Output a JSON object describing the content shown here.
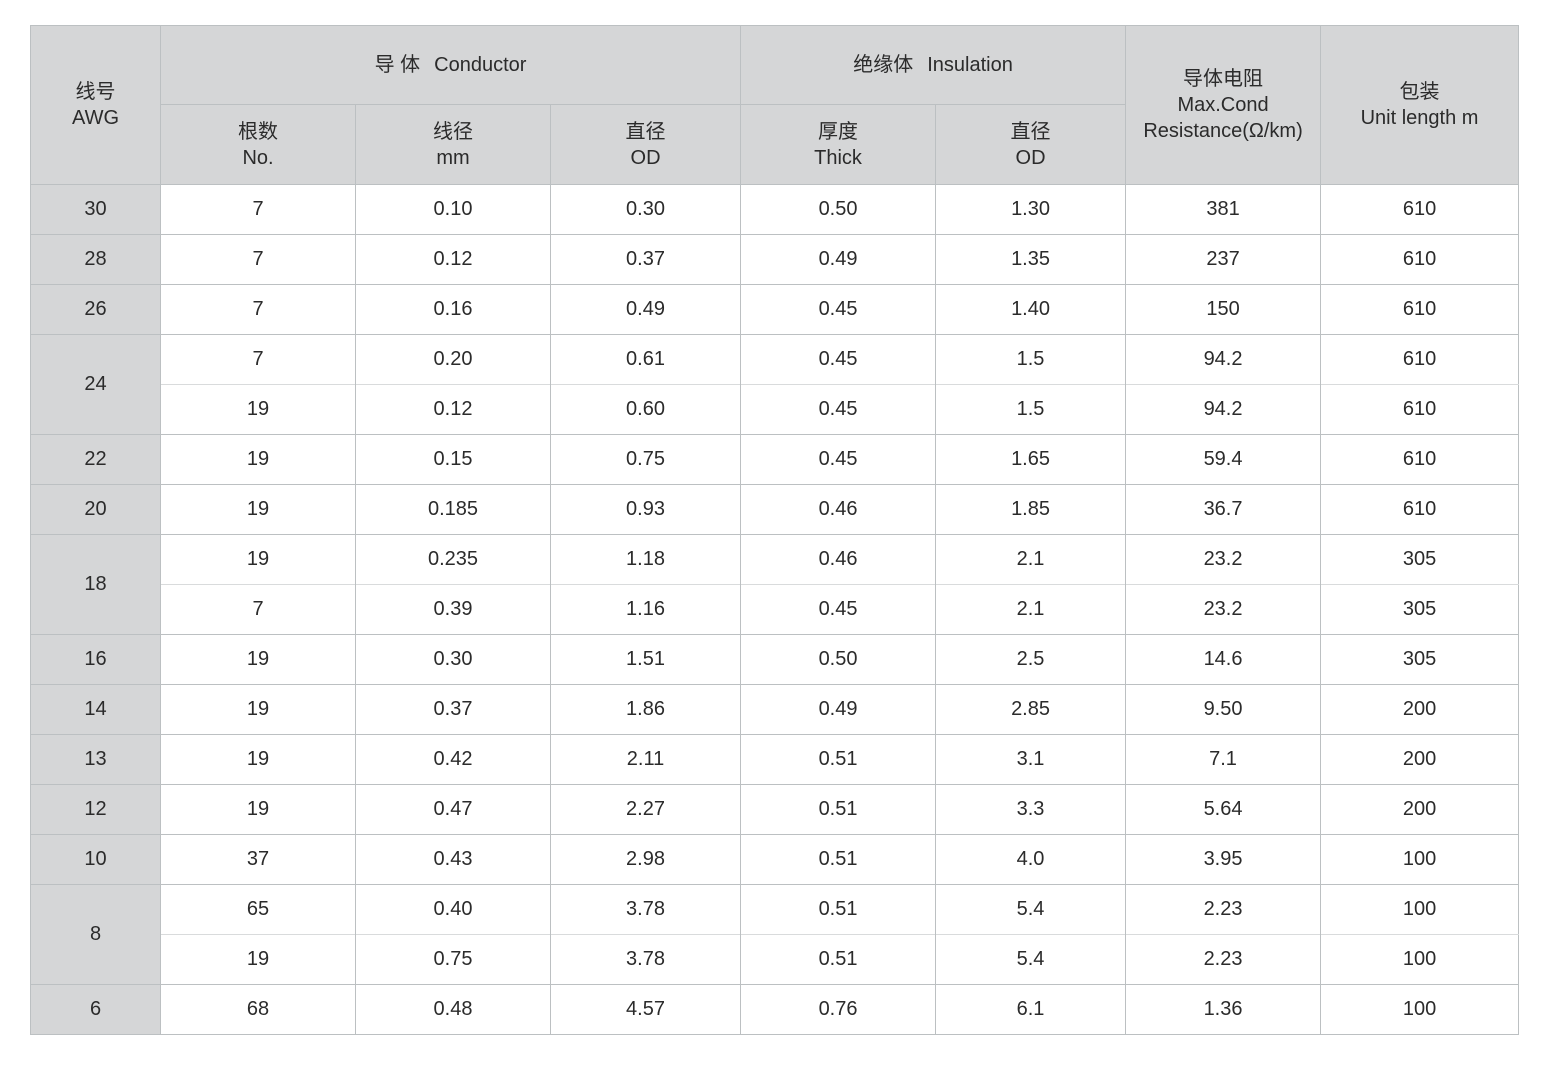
{
  "table": {
    "header": {
      "awg": {
        "zh": "线号",
        "en": "AWG"
      },
      "conductor": {
        "zh": "导 体",
        "en": "Conductor"
      },
      "insulation": {
        "zh": "绝缘体",
        "en": "Insulation"
      },
      "resistance": {
        "line1": "导体电阻",
        "line2": "Max.Cond",
        "line3": "Resistance(Ω/km)"
      },
      "packaging": {
        "zh": "包装",
        "en": "Unit length m"
      },
      "sub": [
        {
          "zh": "根数",
          "en": "No."
        },
        {
          "zh": "线径",
          "en": "mm"
        },
        {
          "zh": "直径",
          "en": "OD"
        },
        {
          "zh": "厚度",
          "en": "Thick"
        },
        {
          "zh": "直径",
          "en": "OD"
        }
      ]
    },
    "column_keys": [
      "no",
      "wire-dia-mm",
      "conductor-od",
      "thick",
      "insulation-od",
      "resistance",
      "unit-length"
    ],
    "groups": [
      {
        "awg": "30",
        "rows": [
          [
            "7",
            "0.10",
            "0.30",
            "0.50",
            "1.30",
            "381",
            "610"
          ]
        ]
      },
      {
        "awg": "28",
        "rows": [
          [
            "7",
            "0.12",
            "0.37",
            "0.49",
            "1.35",
            "237",
            "610"
          ]
        ]
      },
      {
        "awg": "26",
        "rows": [
          [
            "7",
            "0.16",
            "0.49",
            "0.45",
            "1.40",
            "150",
            "610"
          ]
        ]
      },
      {
        "awg": "24",
        "rows": [
          [
            "7",
            "0.20",
            "0.61",
            "0.45",
            "1.5",
            "94.2",
            "610"
          ],
          [
            "19",
            "0.12",
            "0.60",
            "0.45",
            "1.5",
            "94.2",
            "610"
          ]
        ]
      },
      {
        "awg": "22",
        "rows": [
          [
            "19",
            "0.15",
            "0.75",
            "0.45",
            "1.65",
            "59.4",
            "610"
          ]
        ]
      },
      {
        "awg": "20",
        "rows": [
          [
            "19",
            "0.185",
            "0.93",
            "0.46",
            "1.85",
            "36.7",
            "610"
          ]
        ]
      },
      {
        "awg": "18",
        "rows": [
          [
            "19",
            "0.235",
            "1.18",
            "0.46",
            "2.1",
            "23.2",
            "305"
          ],
          [
            "7",
            "0.39",
            "1.16",
            "0.45",
            "2.1",
            "23.2",
            "305"
          ]
        ]
      },
      {
        "awg": "16",
        "rows": [
          [
            "19",
            "0.30",
            "1.51",
            "0.50",
            "2.5",
            "14.6",
            "305"
          ]
        ]
      },
      {
        "awg": "14",
        "rows": [
          [
            "19",
            "0.37",
            "1.86",
            "0.49",
            "2.85",
            "9.50",
            "200"
          ]
        ]
      },
      {
        "awg": "13",
        "rows": [
          [
            "19",
            "0.42",
            "2.11",
            "0.51",
            "3.1",
            "7.1",
            "200"
          ]
        ]
      },
      {
        "awg": "12",
        "rows": [
          [
            "19",
            "0.47",
            "2.27",
            "0.51",
            "3.3",
            "5.64",
            "200"
          ]
        ]
      },
      {
        "awg": "10",
        "rows": [
          [
            "37",
            "0.43",
            "2.98",
            "0.51",
            "4.0",
            "3.95",
            "100"
          ]
        ]
      },
      {
        "awg": "8",
        "rows": [
          [
            "65",
            "0.40",
            "3.78",
            "0.51",
            "5.4",
            "2.23",
            "100"
          ],
          [
            "19",
            "0.75",
            "3.78",
            "0.51",
            "5.4",
            "2.23",
            "100"
          ]
        ]
      },
      {
        "awg": "6",
        "rows": [
          [
            "68",
            "0.48",
            "4.57",
            "0.76",
            "6.1",
            "1.36",
            "100"
          ]
        ]
      }
    ],
    "colors": {
      "header_bg": "#d5d6d7",
      "border": "#bcc0c2",
      "sub_row_border": "#d9dbdc",
      "text": "#2b2b2b"
    }
  }
}
